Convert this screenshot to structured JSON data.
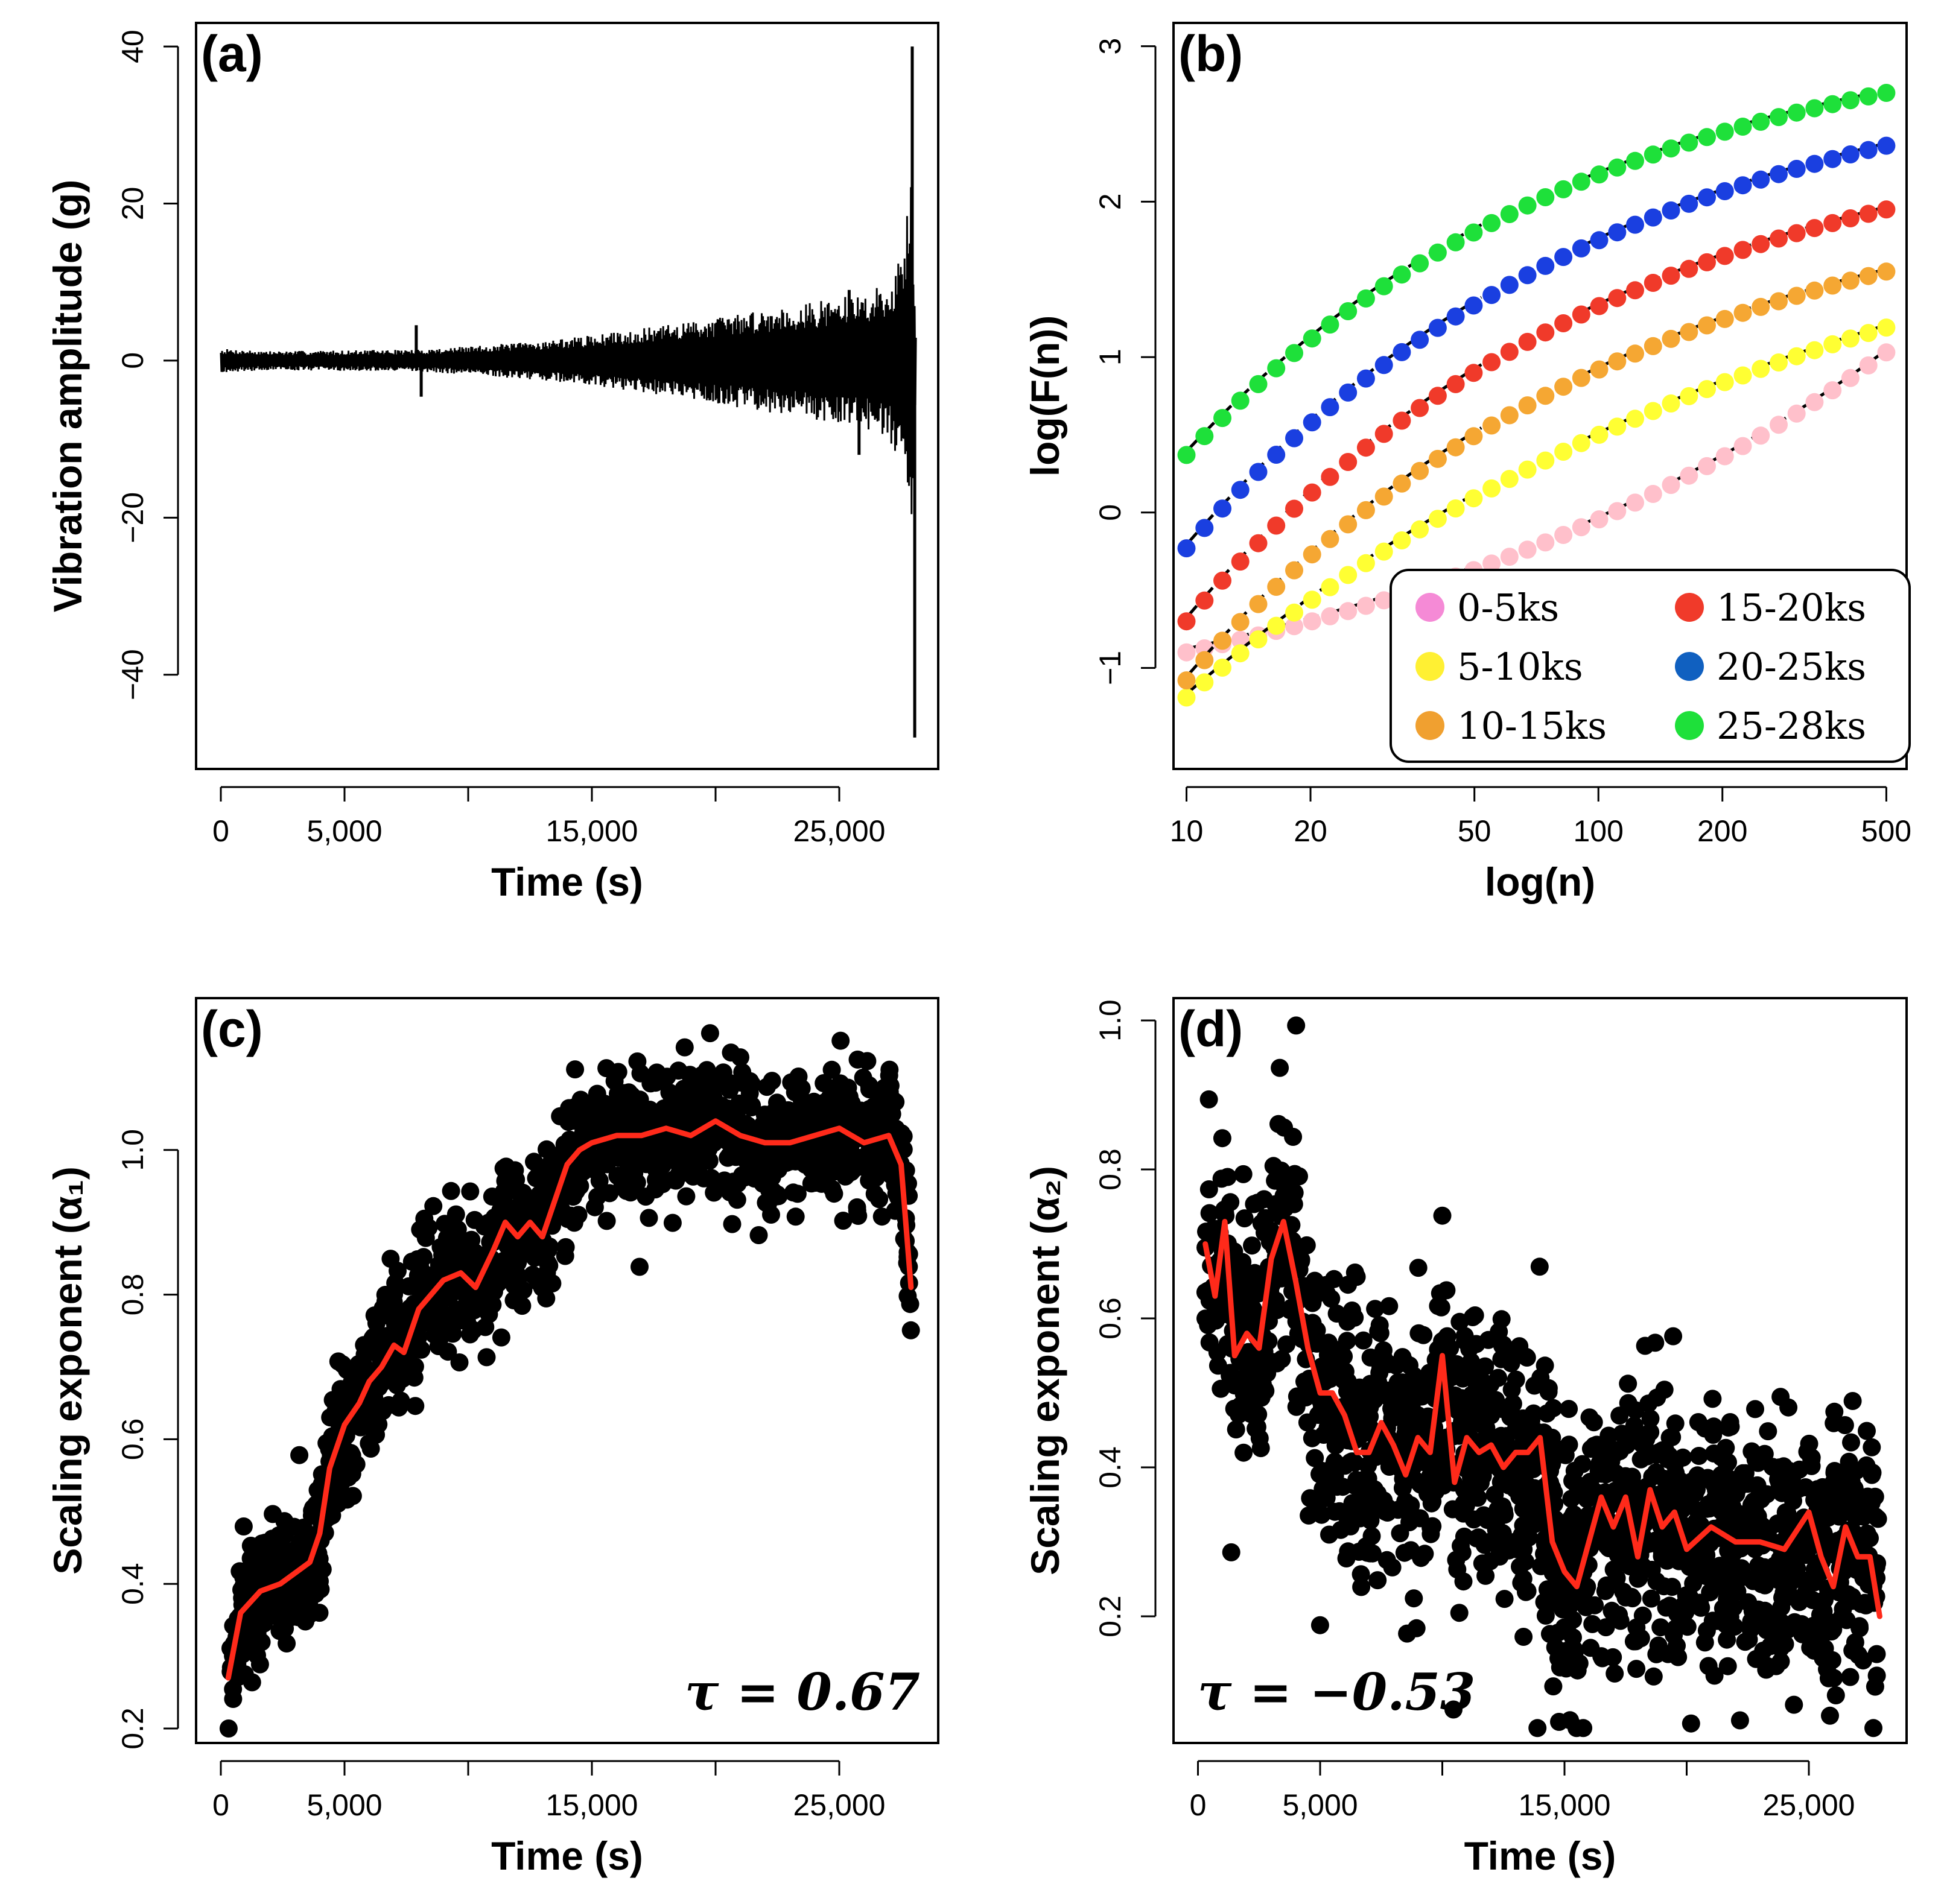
{
  "chart_data": [
    {
      "id": "a",
      "type": "line",
      "panel_label": "(a)",
      "xlabel": "Time (s)",
      "ylabel": "Vibration amplitude (g)",
      "xlim": [
        -1000,
        29000
      ],
      "ylim": [
        -52,
        43
      ],
      "xticks": [
        0,
        5000,
        10000,
        15000,
        20000,
        25000
      ],
      "xtick_labels": [
        "0",
        "5,000",
        "",
        "15,000",
        "",
        "25,000"
      ],
      "yticks": [
        -40,
        -20,
        0,
        20,
        40
      ],
      "ytick_labels": [
        "−40",
        "−20",
        "0",
        "20",
        "40"
      ],
      "series": [
        {
          "name": "vibration",
          "color": "#000000",
          "envelope": {
            "x": [
              0,
              2000,
              5000,
              8000,
              10000,
              13000,
              15000,
              18000,
              20000,
              22000,
              24000,
              26000,
              27000,
              27600,
              27900,
              28100
            ],
            "upper": [
              1.5,
              1.2,
              1.3,
              1.4,
              1.8,
              2.5,
              3.2,
              4.5,
              5.5,
              6.5,
              7.5,
              8.5,
              10,
              14,
              25,
              5
            ],
            "lower": [
              -1.5,
              -1.2,
              -1.3,
              -1.4,
              -1.8,
              -2.5,
              -3.2,
              -4.5,
              -5.5,
              -6.5,
              -7.5,
              -8.5,
              -10,
              -14,
              -28,
              -5
            ]
          },
          "spikes": [
            [
              7900,
              4.5
            ],
            [
              8100,
              -4.6
            ],
            [
              25400,
              9
            ],
            [
              25800,
              -12
            ],
            [
              27950,
              40
            ],
            [
              28050,
              -48
            ]
          ]
        }
      ]
    },
    {
      "id": "b",
      "type": "scatter",
      "panel_label": "(b)",
      "xlabel": "log(n)",
      "ylabel": "log(F(n))",
      "xscale": "log",
      "xlim": [
        9.3,
        560
      ],
      "ylim": [
        -1.65,
        3.15
      ],
      "xticks": [
        10,
        20,
        50,
        100,
        200,
        500
      ],
      "xtick_labels": [
        "10",
        "20",
        "50",
        "100",
        "200",
        "500"
      ],
      "yticks": [
        -1,
        0,
        1,
        2,
        3
      ],
      "ytick_labels": [
        "−1",
        "0",
        "1",
        "2",
        "3"
      ],
      "fit_line_style": "dashed black",
      "legend": {
        "position": "bottom-right",
        "columns": 2
      },
      "series": [
        {
          "name": "0-5ks",
          "color": "#FFC0CB",
          "legend_color": "#F58AD6",
          "y_start": -0.9,
          "y_end": 1.03,
          "shape": 0.8
        },
        {
          "name": "5-10ks",
          "color": "#FFFF33",
          "legend_color": "#FFF033",
          "y_start": -1.19,
          "y_end": 1.19,
          "shape": 1.05
        },
        {
          "name": "10-15ks",
          "color": "#F5A733",
          "legend_color": "#F0A030",
          "y_start": -1.08,
          "y_end": 1.55,
          "shape": 1.55
        },
        {
          "name": "15-20ks",
          "color": "#F03A2A",
          "legend_color": "#F03A2A",
          "y_start": -0.7,
          "y_end": 1.95,
          "shape": 1.6
        },
        {
          "name": "20-25ks",
          "color": "#1A3FE0",
          "legend_color": "#1060C0",
          "y_start": -0.23,
          "y_end": 2.36,
          "shape": 1.6
        },
        {
          "name": "25-28ks",
          "color": "#1EE03A",
          "legend_color": "#1EE03A",
          "y_start": 0.37,
          "y_end": 2.7,
          "shape": 1.7
        }
      ]
    },
    {
      "id": "c",
      "type": "scatter",
      "panel_label": "(c)",
      "xlabel": "Time (s)",
      "ylabel": "Scaling exponent (α₁)",
      "annotation": "τ = 0.67",
      "xlim": [
        -1000,
        29000
      ],
      "ylim": [
        0.18,
        1.21
      ],
      "xticks": [
        0,
        5000,
        10000,
        15000,
        20000,
        25000
      ],
      "xtick_labels": [
        "0",
        "5,000",
        "",
        "15,000",
        "",
        "25,000"
      ],
      "yticks": [
        0.2,
        0.4,
        0.6,
        0.8,
        1.0
      ],
      "ytick_labels": [
        "0.2",
        "0.4",
        "0.6",
        "0.8",
        "1.0"
      ],
      "series": [
        {
          "name": "points",
          "color": "#000000",
          "spread": 0.045,
          "n": 1500
        },
        {
          "name": "moving average",
          "color": "#FF2A1A",
          "x": [
            300,
            800,
            1600,
            2400,
            3200,
            3600,
            4000,
            4400,
            5000,
            5600,
            6000,
            6500,
            7000,
            7400,
            8000,
            8500,
            9000,
            9700,
            10300,
            11000,
            11500,
            12000,
            12500,
            13000,
            13500,
            14000,
            14500,
            15000,
            16000,
            17000,
            18000,
            19000,
            20000,
            21000,
            22000,
            23000,
            24000,
            25000,
            26000,
            27000,
            27500,
            27900
          ],
          "y": [
            0.27,
            0.36,
            0.39,
            0.4,
            0.42,
            0.43,
            0.47,
            0.56,
            0.62,
            0.65,
            0.68,
            0.7,
            0.73,
            0.72,
            0.78,
            0.8,
            0.82,
            0.83,
            0.81,
            0.86,
            0.9,
            0.88,
            0.9,
            0.88,
            0.93,
            0.98,
            1.0,
            1.01,
            1.02,
            1.02,
            1.03,
            1.02,
            1.04,
            1.02,
            1.01,
            1.01,
            1.02,
            1.03,
            1.01,
            1.02,
            0.98,
            0.81
          ]
        }
      ]
    },
    {
      "id": "d",
      "type": "scatter",
      "panel_label": "(d)",
      "xlabel": "Time (s)",
      "ylabel": "Scaling exponent (α₂)",
      "annotation": "τ = −0.53",
      "xlim": [
        -1000,
        29000
      ],
      "ylim": [
        0.03,
        1.03
      ],
      "xticks": [
        0,
        5000,
        10000,
        15000,
        20000,
        25000
      ],
      "xtick_labels": [
        "0",
        "5,000",
        "",
        "15,000",
        "",
        "25,000"
      ],
      "yticks": [
        0.2,
        0.4,
        0.6,
        0.8,
        1.0
      ],
      "ytick_labels": [
        "0.2",
        "0.4",
        "0.6",
        "0.8",
        "1.0"
      ],
      "series": [
        {
          "name": "points",
          "color": "#000000",
          "spread": 0.09,
          "n": 1600
        },
        {
          "name": "moving average",
          "color": "#FF2A1A",
          "x": [
            300,
            700,
            1100,
            1500,
            2000,
            2500,
            3000,
            3500,
            4000,
            4500,
            5000,
            5500,
            6000,
            6500,
            7000,
            7500,
            8000,
            8500,
            9000,
            9500,
            10000,
            10500,
            11000,
            11500,
            12000,
            12500,
            13000,
            13500,
            14000,
            14500,
            15000,
            15500,
            16000,
            16500,
            17000,
            17500,
            18000,
            18500,
            19000,
            19500,
            20000,
            21000,
            22000,
            23000,
            24000,
            25000,
            25500,
            26000,
            26500,
            27000,
            27500,
            27900
          ],
          "y": [
            0.7,
            0.63,
            0.73,
            0.55,
            0.58,
            0.56,
            0.68,
            0.73,
            0.65,
            0.56,
            0.5,
            0.5,
            0.47,
            0.42,
            0.42,
            0.46,
            0.43,
            0.39,
            0.44,
            0.42,
            0.55,
            0.38,
            0.44,
            0.42,
            0.43,
            0.4,
            0.42,
            0.42,
            0.44,
            0.3,
            0.26,
            0.24,
            0.3,
            0.36,
            0.32,
            0.36,
            0.28,
            0.37,
            0.32,
            0.34,
            0.29,
            0.32,
            0.3,
            0.3,
            0.29,
            0.34,
            0.28,
            0.24,
            0.32,
            0.28,
            0.28,
            0.2
          ]
        }
      ]
    }
  ]
}
